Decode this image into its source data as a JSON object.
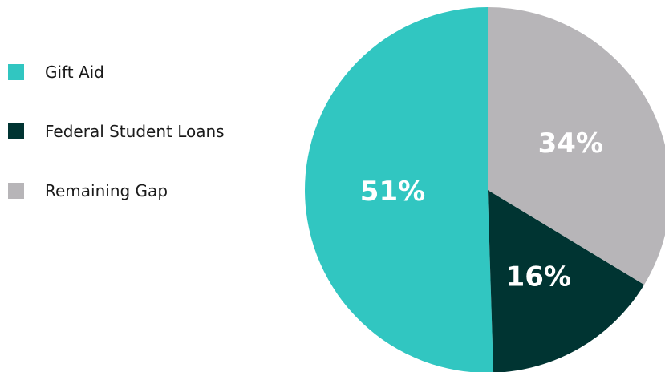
{
  "chart_data": {
    "type": "pie",
    "categories": [
      "Gift Aid",
      "Federal Student Loans",
      "Remaining Gap"
    ],
    "values": [
      51,
      16,
      34
    ],
    "data_labels": [
      "51%",
      "16%",
      "34%"
    ],
    "colors": [
      "#31c6c1",
      "#003432",
      "#b7b5b8"
    ],
    "legend_placement": "left",
    "start_angle_deg": 0,
    "direction": "counterclockwise-from-top"
  }
}
